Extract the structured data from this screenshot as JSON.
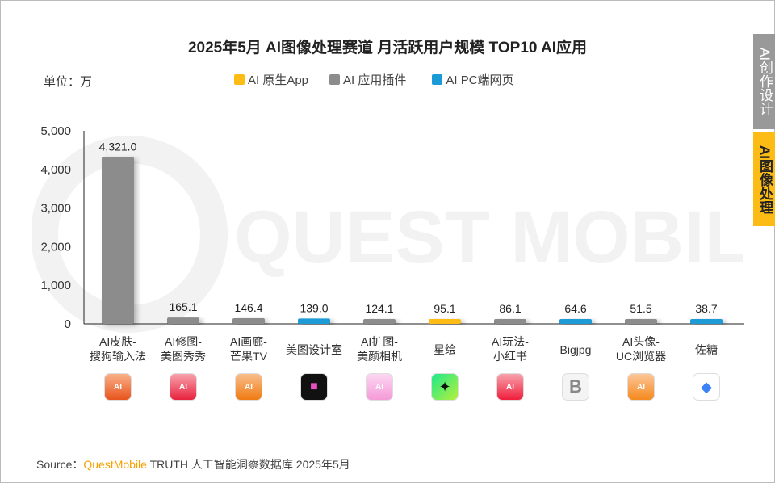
{
  "side_tabs": [
    "AI创作设计",
    "AI图像处理"
  ],
  "unit_label": "单位：万",
  "source": {
    "prefix": "Source：",
    "brand": "QuestMobile",
    "rest": " TRUTH 人工智能洞察数据库 2025年5月"
  },
  "watermark": "QUEST MOBILE",
  "colors": {
    "AI 原生App": "#fdbb16",
    "AI 应用插件": "#8c8c8c",
    "AI PC端网页": "#1a9bd7"
  },
  "chart_data": {
    "type": "bar",
    "title": "2025年5月 AI图像处理赛道 月活跃用户规模 TOP10 AI应用",
    "legend": [
      "AI 原生App",
      "AI 应用插件",
      "AI PC端网页"
    ],
    "legend_position": "top",
    "categories": [
      "AI皮肤-\n搜狗输入法",
      "AI修图-\n美图秀秀",
      "AI画廊-\n芒果TV",
      "美图设计室",
      "AI扩图-\n美颜相机",
      "星绘",
      "AI玩法-\n小红书",
      "Bigjpg",
      "AI头像-\nUC浏览器",
      "佐糖"
    ],
    "values": [
      4321.0,
      165.1,
      146.4,
      139.0,
      124.1,
      95.1,
      86.1,
      64.6,
      51.5,
      38.7
    ],
    "value_labels": [
      "4,321.0",
      "165.1",
      "146.4",
      "139.0",
      "124.1",
      "95.1",
      "86.1",
      "64.6",
      "51.5",
      "38.7"
    ],
    "series_type": [
      "AI 应用插件",
      "AI 应用插件",
      "AI 应用插件",
      "AI PC端网页",
      "AI 应用插件",
      "AI 原生App",
      "AI 应用插件",
      "AI PC端网页",
      "AI 应用插件",
      "AI PC端网页"
    ],
    "icons": [
      "sogou-ai-icon",
      "meitu-ai-icon",
      "mangotv-ai-icon",
      "meitu-design-icon",
      "beautycam-ai-icon",
      "xinghui-icon",
      "xiaohongshu-ai-icon",
      "bigjpg-icon",
      "uc-ai-icon",
      "zuotang-icon"
    ],
    "ylim": [
      0,
      5000
    ],
    "yticks": [
      "0",
      "1,000",
      "2,000",
      "3,000",
      "4,000",
      "5,000"
    ],
    "grid": false
  }
}
